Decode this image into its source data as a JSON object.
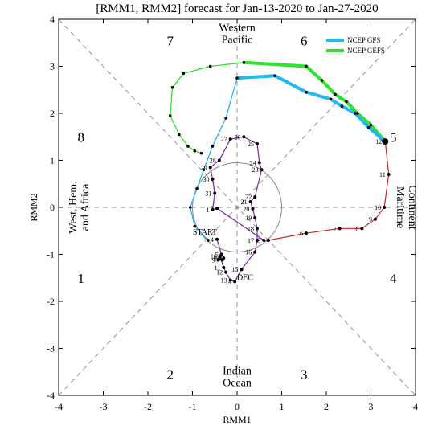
{
  "chart_data": {
    "type": "line",
    "title": "[RMM1, RMM2] forecast for Jan-13-2020 to Jan-27-2020",
    "xlabel": "RMM1",
    "ylabel": "RMM2",
    "xlim": [
      -4,
      4
    ],
    "ylim": [
      -4,
      4
    ],
    "x_ticks": [
      "-4",
      "-3",
      "-2",
      "-1",
      "0",
      "1",
      "2",
      "3",
      "4"
    ],
    "y_ticks": [
      "-4",
      "-3",
      "-2",
      "-1",
      "0",
      "1",
      "2",
      "3",
      "4"
    ],
    "legend_position": "top-right",
    "phase_labels": [
      {
        "text": "1",
        "x": -3.5,
        "y": -1.5
      },
      {
        "text": "2",
        "x": -1.5,
        "y": -3.55
      },
      {
        "text": "3",
        "x": 1.5,
        "y": -3.55
      },
      {
        "text": "4",
        "x": 3.5,
        "y": -1.5
      },
      {
        "text": "5",
        "x": 3.5,
        "y": 1.5
      },
      {
        "text": "6",
        "x": 1.5,
        "y": 3.55
      },
      {
        "text": "7",
        "x": -1.5,
        "y": 3.55
      },
      {
        "text": "8",
        "x": -3.5,
        "y": 1.5
      }
    ],
    "region_labels": {
      "top": [
        "Western",
        "Pacific"
      ],
      "bottom": [
        "Indian",
        "Ocean"
      ],
      "left": [
        "West. Hem.",
        "and Africa"
      ],
      "right": [
        "Maritime",
        "Continent"
      ]
    },
    "observed": {
      "month_labels": [
        "START",
        "DEC"
      ],
      "color": "#7a2a9e",
      "points": [
        {
          "label": "4",
          "x": -0.45,
          "y": -0.68
        },
        {
          "label": "5",
          "x": -0.35,
          "y": -1.0
        },
        {
          "label": "6",
          "x": -0.3,
          "y": -1.08
        },
        {
          "label": "7",
          "x": -0.33,
          "y": -1.12
        },
        {
          "label": "8",
          "x": -0.38,
          "y": -1.09
        },
        {
          "label": "9",
          "x": -0.42,
          "y": -1.12
        },
        {
          "label": "10",
          "x": -0.38,
          "y": -1.04
        },
        {
          "label": "11",
          "x": -0.3,
          "y": -1.28
        },
        {
          "label": "12",
          "x": -0.25,
          "y": -1.38
        },
        {
          "label": "13",
          "x": -0.15,
          "y": -1.55
        },
        {
          "label": "14",
          "x": -0.05,
          "y": -1.58
        },
        {
          "label": "15",
          "x": 0.1,
          "y": -1.32
        },
        {
          "label": "16",
          "x": 0.4,
          "y": -0.95
        },
        {
          "label": "17",
          "x": 0.45,
          "y": -0.7
        },
        {
          "label": "18",
          "x": 0.45,
          "y": -0.45
        },
        {
          "label": "19",
          "x": 0.4,
          "y": -0.22
        },
        {
          "label": "20",
          "x": 0.35,
          "y": -0.03
        },
        {
          "label": "21",
          "x": 0.3,
          "y": 0.12
        },
        {
          "label": "22",
          "x": 0.4,
          "y": 0.22
        },
        {
          "label": "23",
          "x": 0.55,
          "y": 0.8
        },
        {
          "label": "24",
          "x": 0.5,
          "y": 0.95
        },
        {
          "label": "25",
          "x": 0.45,
          "y": 1.35
        },
        {
          "label": "26",
          "x": 0.15,
          "y": 1.5
        },
        {
          "label": "27",
          "x": -0.15,
          "y": 1.45
        },
        {
          "label": "28",
          "x": -0.4,
          "y": 1.0
        },
        {
          "label": "29",
          "x": -0.6,
          "y": 0.85
        },
        {
          "label": "30",
          "x": -0.55,
          "y": 0.6
        },
        {
          "label": "31",
          "x": -0.5,
          "y": 0.3
        },
        {
          "label": "1",
          "x": -0.55,
          "y": -0.05
        },
        {
          "label": "2",
          "x": -0.45,
          "y": -0.02
        },
        {
          "label": "3",
          "x": 0.6,
          "y": -0.7
        },
        {
          "label": "",
          "x": 0.7,
          "y": -0.7
        }
      ]
    },
    "forecast_days": {
      "color": "#cc2222",
      "points": [
        {
          "label": "",
          "x": 0.7,
          "y": -0.7
        },
        {
          "label": "6",
          "x": 1.55,
          "y": -0.55
        },
        {
          "label": "7",
          "x": 2.3,
          "y": -0.45
        },
        {
          "label": "8",
          "x": 2.8,
          "y": -0.45
        },
        {
          "label": "9",
          "x": 3.1,
          "y": -0.25
        },
        {
          "label": "10",
          "x": 3.3,
          "y": 0.0
        },
        {
          "label": "11",
          "x": 3.4,
          "y": 0.7
        },
        {
          "label": "12",
          "x": 3.32,
          "y": 1.4
        }
      ]
    },
    "series": [
      {
        "name": "NCEP GFS",
        "color": "#22b8f0",
        "points": [
          {
            "x": -0.65,
            "y": -0.7
          },
          {
            "x": -0.95,
            "y": -0.4
          },
          {
            "x": -1.05,
            "y": 0.0
          },
          {
            "x": -0.9,
            "y": 0.4
          },
          {
            "x": -0.75,
            "y": 0.8
          },
          {
            "x": -0.55,
            "y": 1.3
          },
          {
            "x": -0.25,
            "y": 1.9
          },
          {
            "x": 0.0,
            "y": 2.75
          },
          {
            "x": 0.85,
            "y": 2.8
          },
          {
            "x": 1.55,
            "y": 2.45
          },
          {
            "x": 2.1,
            "y": 2.3
          },
          {
            "x": 2.35,
            "y": 2.15
          },
          {
            "x": 2.65,
            "y": 2.0
          },
          {
            "x": 2.95,
            "y": 1.7
          },
          {
            "x": 3.32,
            "y": 1.4
          }
        ]
      },
      {
        "name": "NCEP GEFS",
        "color": "#2ee22e",
        "points": [
          {
            "x": -0.8,
            "y": 1.15
          },
          {
            "x": -0.95,
            "y": 1.2
          },
          {
            "x": -1.1,
            "y": 1.3
          },
          {
            "x": -1.3,
            "y": 1.55
          },
          {
            "x": -1.5,
            "y": 1.95
          },
          {
            "x": -1.45,
            "y": 2.55
          },
          {
            "x": -1.2,
            "y": 2.85
          },
          {
            "x": -0.6,
            "y": 3.0
          },
          {
            "x": 0.15,
            "y": 3.08
          },
          {
            "x": 1.55,
            "y": 3.0
          },
          {
            "x": 1.9,
            "y": 2.7
          },
          {
            "x": 2.2,
            "y": 2.4
          },
          {
            "x": 2.45,
            "y": 2.25
          },
          {
            "x": 2.7,
            "y": 2.0
          },
          {
            "x": 3.0,
            "y": 1.75
          },
          {
            "x": 3.32,
            "y": 1.4
          }
        ]
      }
    ]
  }
}
